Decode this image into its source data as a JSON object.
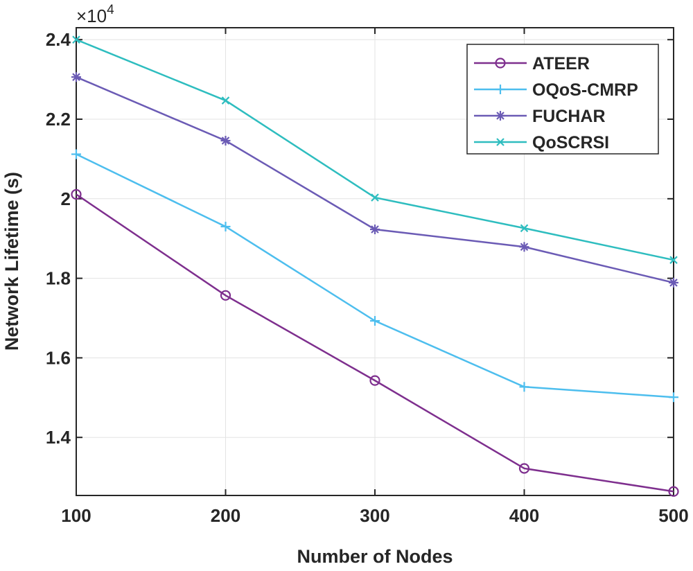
{
  "chart_data": {
    "type": "line",
    "title": "",
    "xlabel": "Number of Nodes",
    "ylabel": "Network Lifetime (s)",
    "y_multiplier": "×10",
    "y_multiplier_exp": "4",
    "x": [
      100,
      200,
      300,
      400,
      500
    ],
    "x_ticks": [
      "100",
      "200",
      "300",
      "400",
      "500"
    ],
    "y_ticks": [
      "1.4",
      "1.6",
      "1.8",
      "2",
      "2.2",
      "2.4"
    ],
    "xlim": [
      100,
      500
    ],
    "ylim": [
      1.254,
      2.43
    ],
    "grid": true,
    "legend_position": "top-right",
    "series": [
      {
        "name": "ATEER",
        "color": "#7E2F8E",
        "marker": "circle",
        "values": [
          2.011,
          1.757,
          1.543,
          1.322,
          1.264
        ]
      },
      {
        "name": "OQoS-CMRP",
        "color": "#4DBEEE",
        "marker": "plus",
        "values": [
          2.112,
          1.93,
          1.693,
          1.527,
          1.501
        ]
      },
      {
        "name": "FUCHAR",
        "color": "#6B5BB5",
        "marker": "asterisk",
        "values": [
          2.306,
          2.146,
          1.923,
          1.879,
          1.789
        ]
      },
      {
        "name": "QoSCRSI",
        "color": "#2EBDBF",
        "marker": "x",
        "values": [
          2.4,
          2.247,
          2.003,
          1.926,
          1.846
        ]
      }
    ]
  }
}
